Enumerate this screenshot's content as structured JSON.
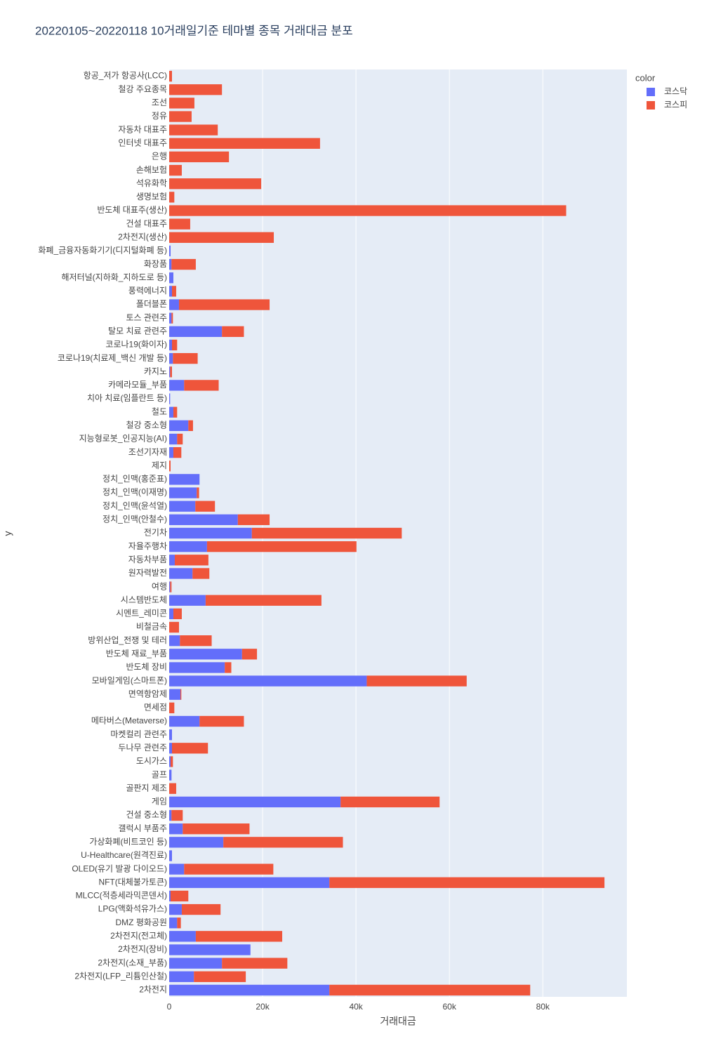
{
  "chart_data": {
    "type": "stacked-barh",
    "title": "20220105~20220118 10거래일기준 테마별 종목 거래대금 분포",
    "x_label": "거래대금",
    "y_label": "y",
    "legend_title": "color",
    "legend_position": "top-right",
    "grid": true,
    "categories": [
      "항공_저가 항공사(LCC)",
      "철강 주요종목",
      "조선",
      "정유",
      "자동차 대표주",
      "인터넷 대표주",
      "은행",
      "손해보험",
      "석유화학",
      "생명보험",
      "반도체 대표주(생산)",
      "건설 대표주",
      "2차전지(생산)",
      "화폐_금융자동화기기(디지털화폐 등)",
      "화장품",
      "해저터널(지하화_지하도로 등)",
      "풍력에너지",
      "폴더블폰",
      "토스 관련주",
      "탈모 치료 관련주",
      "코로나19(화이자)",
      "코로나19(치료제_백신 개발 등)",
      "카지노",
      "카메라모듈_부품",
      "치아 치료(임플란트 등)",
      "철도",
      "철강 중소형",
      "지능형로봇_인공지능(AI)",
      "조선기자재",
      "제지",
      "정치_인맥(홍준표)",
      "정치_인맥(이재명)",
      "정치_인맥(윤석열)",
      "정치_인맥(안철수)",
      "전기차",
      "자율주행차",
      "자동차부품",
      "원자력발전",
      "여행",
      "시스템반도체",
      "시멘트_레미콘",
      "비철금속",
      "방위산업_전쟁 및 테러",
      "반도체 재료_부품",
      "반도체 장비",
      "모바일게임(스마트폰)",
      "면역항암제",
      "면세점",
      "메타버스(Metaverse)",
      "마켓컬리 관련주",
      "두나무 관련주",
      "도시가스",
      "골프",
      "골판지 제조",
      "게임",
      "건설 중소형",
      "갤럭시 부품주",
      "가상화폐(비트코인 등)",
      "U-Healthcare(원격진료)",
      "OLED(유기 발광 다이오드)",
      "NFT(대체불가토큰)",
      "MLCC(적층세라믹콘덴서)",
      "LPG(액화석유가스)",
      "DMZ 평화공원",
      "2차전지(전고체)",
      "2차전지(장비)",
      "2차전지(소재_부품)",
      "2차전지(LFP_리튬인산철)",
      "2차전지"
    ],
    "series": [
      {
        "name": "코스닥",
        "color": "#636efa",
        "values": [
          0,
          0,
          0,
          0,
          0,
          0,
          0,
          0,
          0,
          0,
          0,
          0,
          0,
          300,
          500,
          900,
          600,
          2100,
          500,
          11300,
          600,
          800,
          200,
          3200,
          200,
          900,
          4100,
          1700,
          900,
          0,
          6500,
          5900,
          5600,
          14700,
          17700,
          8100,
          1200,
          5000,
          200,
          7800,
          900,
          0,
          2300,
          15600,
          11900,
          42300,
          2400,
          0,
          6500,
          600,
          600,
          300,
          500,
          0,
          36700,
          500,
          2900,
          11600,
          600,
          3200,
          34300,
          300,
          2700,
          1700,
          5700,
          17400,
          11300,
          5300,
          34300
        ]
      },
      {
        "name": "코스피",
        "color": "#ef553b",
        "values": [
          600,
          11300,
          5400,
          4800,
          10400,
          32300,
          12800,
          2700,
          19700,
          1100,
          85000,
          4500,
          22400,
          0,
          5200,
          0,
          900,
          19400,
          300,
          4700,
          1100,
          5300,
          400,
          7400,
          0,
          800,
          1000,
          1200,
          1700,
          300,
          0,
          500,
          4200,
          6800,
          32100,
          32000,
          7200,
          3600,
          300,
          24800,
          1800,
          2100,
          6800,
          3200,
          1400,
          21400,
          200,
          1100,
          9500,
          0,
          7700,
          500,
          0,
          1500,
          21200,
          2400,
          14300,
          25600,
          0,
          19100,
          58900,
          3800,
          8300,
          800,
          18500,
          0,
          14000,
          11100,
          43000
        ]
      }
    ],
    "xlim": [
      0,
      98000
    ],
    "xticks": [
      0,
      {
        "value": 20000,
        "label": "20k"
      },
      {
        "value": 40000,
        "label": "40k"
      },
      {
        "value": 60000,
        "label": "60k"
      },
      {
        "value": 80000,
        "label": "80k"
      }
    ]
  }
}
